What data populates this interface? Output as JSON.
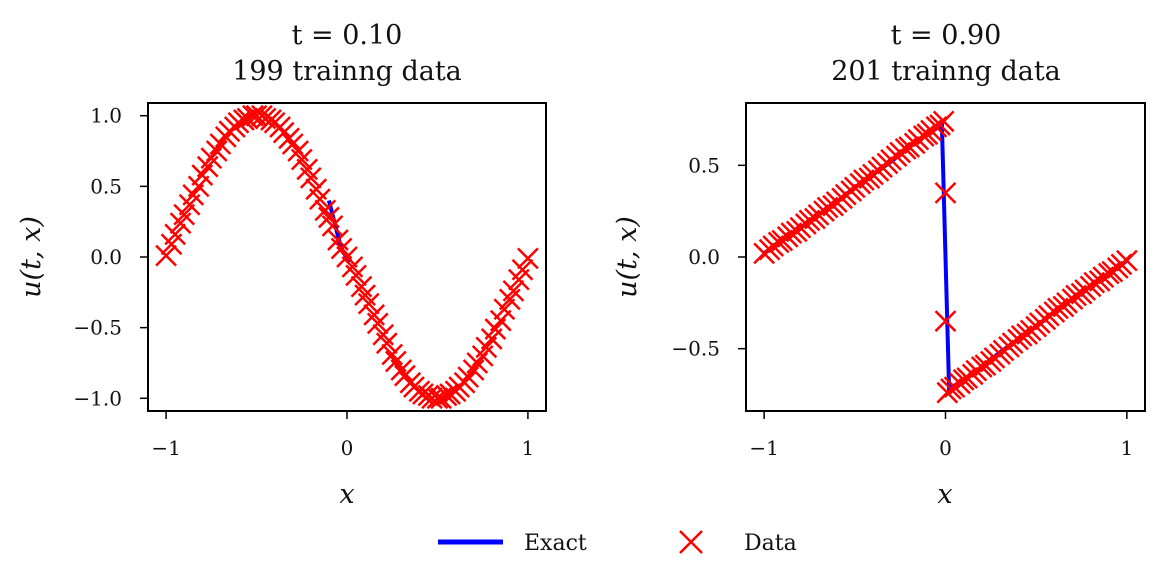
{
  "chart_data": [
    {
      "type": "line",
      "title_line1": "t = 0.10",
      "title_line2": "199 trainng data",
      "xlabel": "x",
      "ylabel": "u(t, x)",
      "xlim": [
        -1.1,
        1.1
      ],
      "ylim": [
        -1.09,
        1.09
      ],
      "xticks": [
        -1,
        0,
        1
      ],
      "xtick_labels": [
        "−1",
        "0",
        "1"
      ],
      "yticks": [
        -1.0,
        -0.5,
        0.0,
        0.5,
        1.0
      ],
      "ytick_labels": [
        "−1.0",
        "−0.5",
        "0.0",
        "0.5",
        "1.0"
      ],
      "series": [
        {
          "name": "Exact",
          "kind": "line",
          "color": "#0000ff",
          "x": [
            -0.1,
            -0.08,
            -0.06,
            -0.04,
            -0.02,
            0.0,
            0.02
          ],
          "y": [
            0.4,
            0.3,
            0.2,
            0.1,
            0.03,
            0.0,
            -0.03
          ]
        },
        {
          "name": "Data",
          "kind": "scatter",
          "color": "#ff0000",
          "x": [
            -1.0,
            -0.97,
            -0.95,
            -0.92,
            -0.9,
            -0.87,
            -0.85,
            -0.82,
            -0.8,
            -0.77,
            -0.75,
            -0.72,
            -0.7,
            -0.67,
            -0.65,
            -0.62,
            -0.6,
            -0.57,
            -0.55,
            -0.52,
            -0.5,
            -0.47,
            -0.45,
            -0.42,
            -0.4,
            -0.37,
            -0.35,
            -0.32,
            -0.3,
            -0.27,
            -0.25,
            -0.22,
            -0.2,
            -0.17,
            -0.15,
            -0.12,
            -0.1,
            -0.08,
            -0.05,
            -0.03,
            0.0,
            0.03,
            0.05,
            0.08,
            0.1,
            0.12,
            0.15,
            0.17,
            0.2,
            0.22,
            0.25,
            0.27,
            0.3,
            0.32,
            0.35,
            0.37,
            0.4,
            0.42,
            0.45,
            0.47,
            0.5,
            0.52,
            0.55,
            0.57,
            0.6,
            0.62,
            0.65,
            0.67,
            0.7,
            0.72,
            0.75,
            0.77,
            0.8,
            0.82,
            0.85,
            0.87,
            0.9,
            0.92,
            0.95,
            0.97,
            1.0
          ],
          "y": [
            0.01,
            0.09,
            0.16,
            0.24,
            0.3,
            0.37,
            0.44,
            0.5,
            0.58,
            0.64,
            0.7,
            0.75,
            0.8,
            0.85,
            0.89,
            0.92,
            0.95,
            0.97,
            0.98,
            1.0,
            1.0,
            1.0,
            0.98,
            0.97,
            0.95,
            0.92,
            0.88,
            0.84,
            0.8,
            0.75,
            0.69,
            0.62,
            0.56,
            0.48,
            0.41,
            0.33,
            0.28,
            0.22,
            0.12,
            0.06,
            0.0,
            -0.07,
            -0.13,
            -0.21,
            -0.27,
            -0.33,
            -0.41,
            -0.47,
            -0.55,
            -0.61,
            -0.69,
            -0.74,
            -0.8,
            -0.84,
            -0.89,
            -0.92,
            -0.95,
            -0.97,
            -0.98,
            -1.0,
            -1.0,
            -1.0,
            -0.98,
            -0.97,
            -0.95,
            -0.92,
            -0.89,
            -0.85,
            -0.8,
            -0.75,
            -0.7,
            -0.64,
            -0.58,
            -0.51,
            -0.45,
            -0.37,
            -0.3,
            -0.24,
            -0.16,
            -0.09,
            -0.01
          ]
        }
      ]
    },
    {
      "type": "line",
      "title_line1": "t = 0.90",
      "title_line2": "201 trainng data",
      "xlabel": "x",
      "ylabel": "u(t, x)",
      "xlim": [
        -1.1,
        1.1
      ],
      "ylim": [
        -0.84,
        0.84
      ],
      "xticks": [
        -1,
        0,
        1
      ],
      "xtick_labels": [
        "−1",
        "0",
        "1"
      ],
      "yticks": [
        -0.5,
        0.0,
        0.5
      ],
      "ytick_labels": [
        "−0.5",
        "0.0",
        "0.5"
      ],
      "series": [
        {
          "name": "Exact",
          "kind": "line",
          "color": "#0000ff",
          "x": [
            -1.0,
            -0.9,
            -0.8,
            -0.7,
            -0.6,
            -0.5,
            -0.4,
            -0.3,
            -0.2,
            -0.1,
            -0.02,
            0.0,
            0.02,
            0.1,
            0.2,
            0.3,
            0.4,
            0.5,
            0.6,
            0.7,
            0.8,
            0.9,
            1.0
          ],
          "y": [
            0.02,
            0.09,
            0.16,
            0.23,
            0.3,
            0.38,
            0.45,
            0.52,
            0.6,
            0.67,
            0.72,
            0.0,
            -0.72,
            -0.67,
            -0.6,
            -0.52,
            -0.45,
            -0.38,
            -0.3,
            -0.23,
            -0.16,
            -0.09,
            -0.02
          ]
        },
        {
          "name": "Data",
          "kind": "scatter",
          "color": "#ff0000",
          "x": [
            -1.0,
            -0.97,
            -0.95,
            -0.92,
            -0.9,
            -0.87,
            -0.85,
            -0.82,
            -0.8,
            -0.77,
            -0.75,
            -0.72,
            -0.7,
            -0.67,
            -0.65,
            -0.62,
            -0.6,
            -0.57,
            -0.55,
            -0.52,
            -0.5,
            -0.47,
            -0.45,
            -0.42,
            -0.4,
            -0.37,
            -0.35,
            -0.32,
            -0.3,
            -0.27,
            -0.25,
            -0.22,
            -0.2,
            -0.17,
            -0.15,
            -0.12,
            -0.1,
            -0.08,
            -0.05,
            -0.03,
            -0.01,
            0.0,
            0.0,
            0.01,
            0.03,
            0.05,
            0.08,
            0.1,
            0.12,
            0.15,
            0.17,
            0.2,
            0.22,
            0.25,
            0.27,
            0.3,
            0.32,
            0.35,
            0.37,
            0.4,
            0.42,
            0.45,
            0.47,
            0.5,
            0.52,
            0.55,
            0.57,
            0.6,
            0.62,
            0.65,
            0.67,
            0.7,
            0.72,
            0.75,
            0.77,
            0.8,
            0.82,
            0.85,
            0.87,
            0.9,
            0.92,
            0.95,
            0.97,
            1.0
          ],
          "y": [
            0.02,
            0.04,
            0.06,
            0.08,
            0.09,
            0.11,
            0.13,
            0.14,
            0.16,
            0.18,
            0.2,
            0.21,
            0.23,
            0.25,
            0.27,
            0.28,
            0.3,
            0.32,
            0.34,
            0.36,
            0.38,
            0.4,
            0.42,
            0.43,
            0.45,
            0.47,
            0.49,
            0.51,
            0.53,
            0.55,
            0.57,
            0.59,
            0.6,
            0.62,
            0.64,
            0.66,
            0.67,
            0.69,
            0.71,
            0.72,
            0.74,
            0.35,
            -0.35,
            -0.74,
            -0.72,
            -0.71,
            -0.69,
            -0.67,
            -0.66,
            -0.64,
            -0.62,
            -0.6,
            -0.59,
            -0.57,
            -0.55,
            -0.53,
            -0.51,
            -0.49,
            -0.47,
            -0.45,
            -0.43,
            -0.42,
            -0.4,
            -0.38,
            -0.36,
            -0.34,
            -0.32,
            -0.3,
            -0.28,
            -0.27,
            -0.25,
            -0.23,
            -0.21,
            -0.2,
            -0.18,
            -0.16,
            -0.14,
            -0.13,
            -0.11,
            -0.09,
            -0.08,
            -0.06,
            -0.04,
            -0.02
          ]
        }
      ]
    }
  ],
  "legend": {
    "exact_label": "Exact",
    "data_label": "Data",
    "exact_color": "#0000ff",
    "data_color": "#ff0000",
    "placement": "bottom-center"
  }
}
